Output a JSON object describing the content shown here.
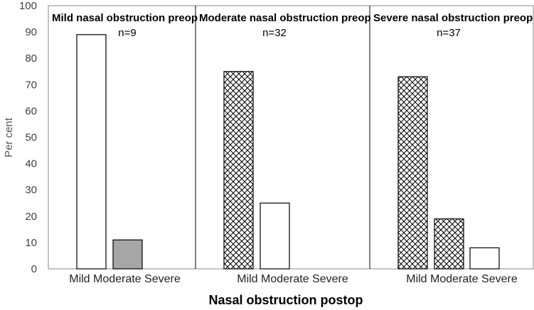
{
  "chart_data": {
    "type": "bar",
    "ylabel": "Per cent",
    "xlabel": "Nasal obstruction postop",
    "ylim": [
      0,
      100
    ],
    "yticks": [
      0,
      10,
      20,
      30,
      40,
      50,
      60,
      70,
      80,
      90,
      100
    ],
    "categories": [
      "Mild",
      "Moderate",
      "Severe"
    ],
    "category_label_text": "Mild Moderate Severe",
    "panels": [
      {
        "title": "Mild nasal obstruction preop",
        "n_label": "n=9",
        "values": [
          89,
          11,
          0
        ],
        "fills": [
          "white",
          "gray",
          "none"
        ]
      },
      {
        "title": "Moderate nasal obstruction preop",
        "n_label": "n=32",
        "values": [
          75,
          25,
          0
        ],
        "fills": [
          "crosshatch",
          "white",
          "none"
        ]
      },
      {
        "title": "Severe nasal obstruction preop",
        "n_label": "n=37",
        "values": [
          73,
          19,
          8
        ],
        "fills": [
          "crosshatch",
          "crosshatch",
          "white"
        ]
      }
    ],
    "colors": {
      "gray_fill": "#a6a6a6",
      "border": "#000000",
      "frame": "#888888"
    }
  }
}
